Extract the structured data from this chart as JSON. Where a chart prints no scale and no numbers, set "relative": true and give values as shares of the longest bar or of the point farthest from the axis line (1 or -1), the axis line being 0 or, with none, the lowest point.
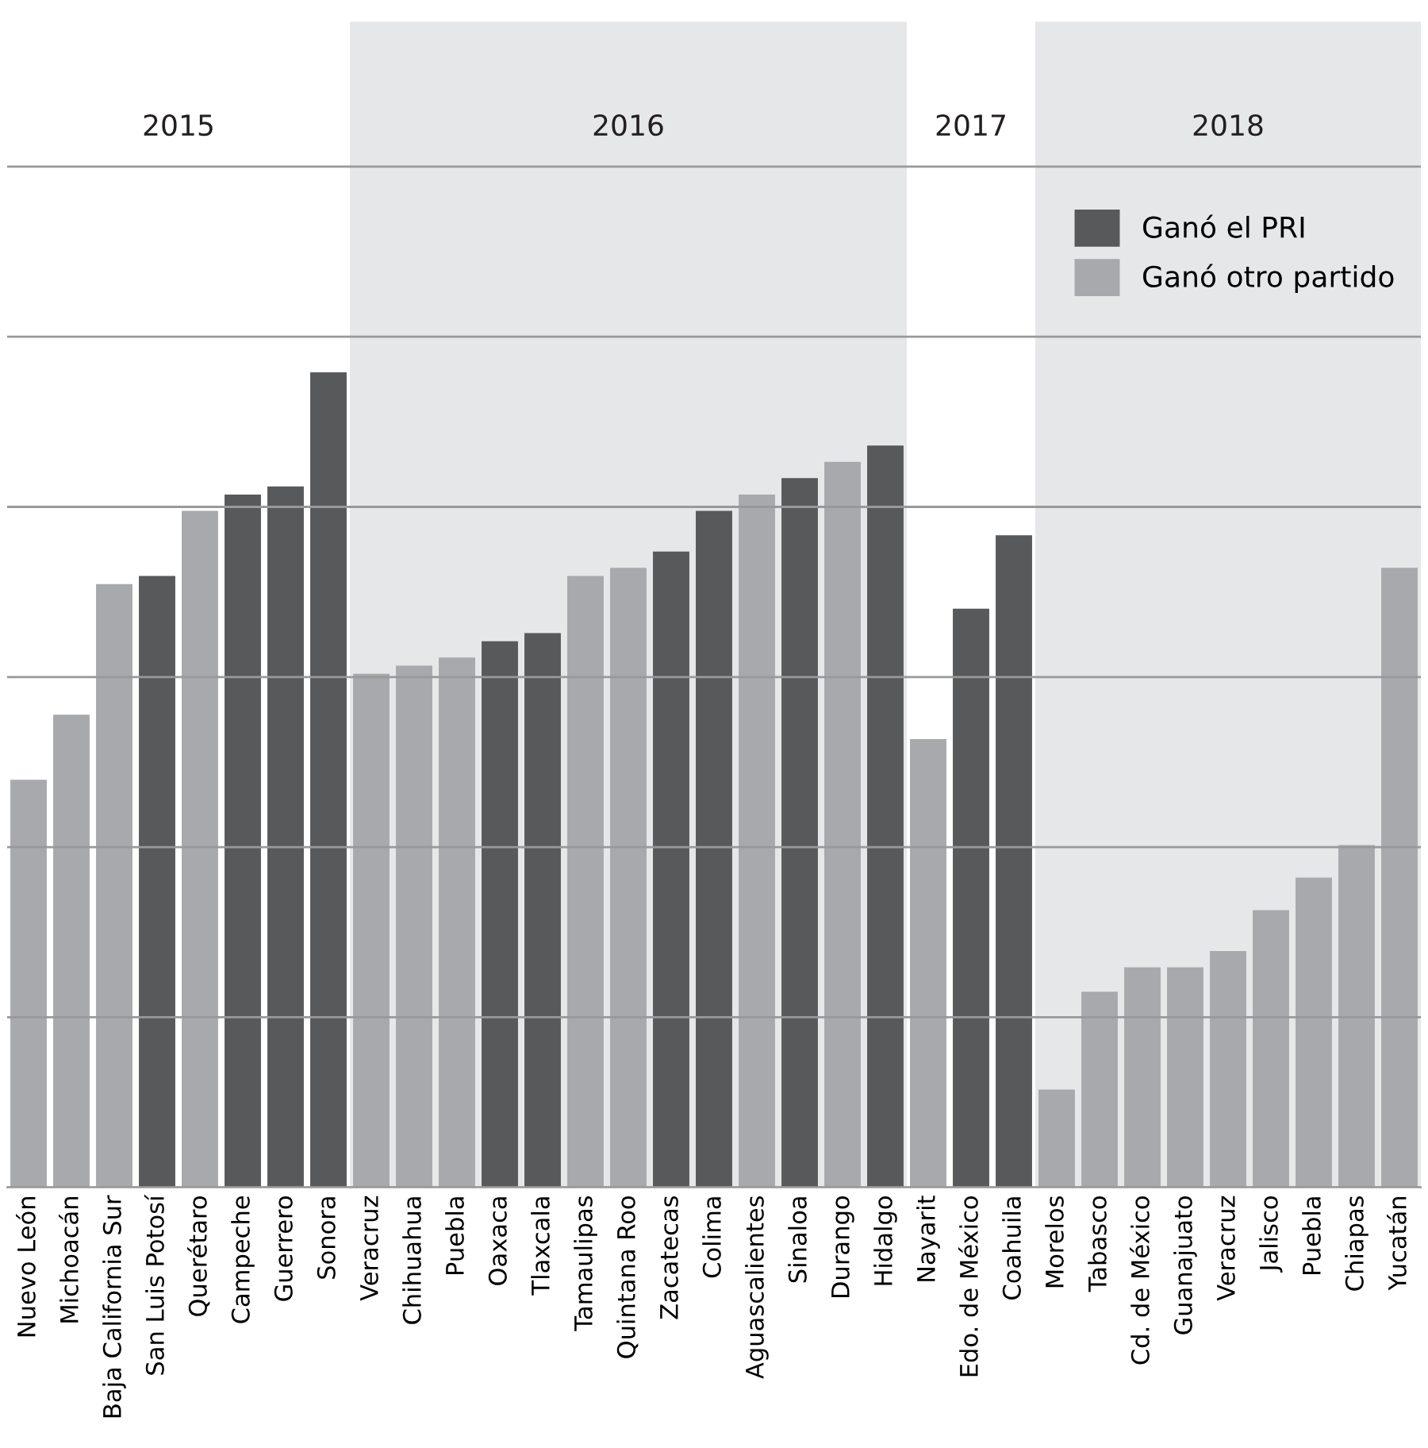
{
  "chart_data": {
    "type": "bar",
    "relative": true,
    "categories": [
      "Nuevo León",
      "Michoacán",
      "Baja California Sur",
      "San Luis Potosí",
      "Querétaro",
      "Campeche",
      "Guerrero",
      "Sonora",
      "Veracruz",
      "Chihuahua",
      "Puebla",
      "Oaxaca",
      "Tlaxcala",
      "Tamaulipas",
      "Quintana Roo",
      "Zacatecas",
      "Colima",
      "Aguascalientes",
      "Sinaloa",
      "Durango",
      "Hidalgo",
      "Nayarit",
      "Edo. de México",
      "Coahuila",
      "Morelos",
      "Tabasco",
      "Cd. de México",
      "Guanajuato",
      "Veracruz",
      "Jalisco",
      "Puebla",
      "Chiapas",
      "Yucatán"
    ],
    "series": [
      {
        "name": "Ganó el PRI",
        "color": "#58595b",
        "values": [
          null,
          null,
          null,
          0.75,
          null,
          0.85,
          0.86,
          1,
          null,
          null,
          null,
          0.67,
          0.68,
          null,
          null,
          0.78,
          0.83,
          null,
          0.87,
          null,
          0.91,
          null,
          0.71,
          0.8,
          null,
          null,
          null,
          null,
          null,
          null,
          null,
          null,
          null
        ]
      },
      {
        "name": "Ganó otro partido",
        "color": "#a7a9ac",
        "values": [
          0.5,
          0.58,
          0.74,
          null,
          0.83,
          null,
          null,
          null,
          0.63,
          0.64,
          0.65,
          null,
          null,
          0.75,
          0.76,
          null,
          null,
          0.85,
          null,
          0.89,
          null,
          0.55,
          null,
          null,
          0.12,
          0.24,
          0.27,
          0.27,
          0.29,
          0.34,
          0.38,
          0.42,
          0.76
        ]
      }
    ],
    "bands": [
      {
        "axis": "x",
        "from": "Veracruz",
        "to": "Hidalgo",
        "label": "2016",
        "color": "#e6e7e8"
      },
      {
        "axis": "x",
        "from": "Morelos",
        "to": "Yucatán",
        "label": "2018",
        "color": "#e6e7e8"
      }
    ],
    "annotations": [
      "2015",
      "2017"
    ],
    "grid": "y",
    "legend": "top right"
  }
}
